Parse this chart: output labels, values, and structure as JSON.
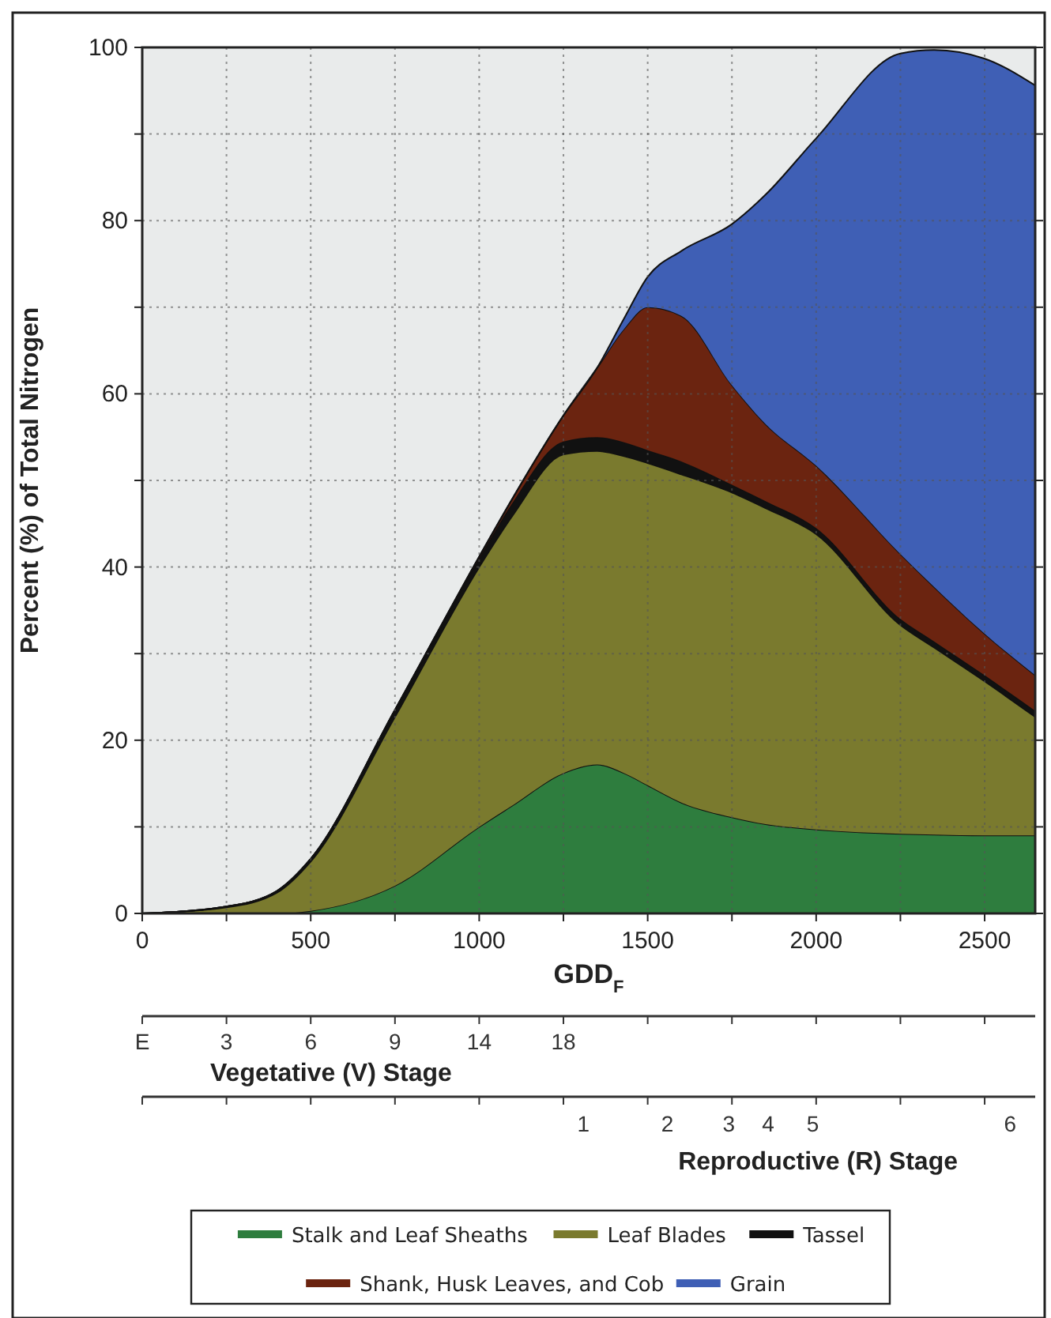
{
  "chart_data": {
    "type": "area",
    "stacked": true,
    "xlabel": "GDD$_{F}$",
    "ylabel": "Percent (%) of Total Nitrogen",
    "x": [
      0,
      250,
      400,
      500,
      750,
      1000,
      1100,
      1250,
      1350,
      1430,
      1500,
      1600,
      1750,
      1850,
      2000,
      2250,
      2350,
      2500,
      2650
    ],
    "series": [
      {
        "name": "Stalk and Leaf Sheaths",
        "color": "#2e7d3e",
        "values": [
          0,
          0,
          0,
          0.3,
          3.2,
          10,
          12.5,
          16.2,
          17.2,
          16.2,
          14.8,
          12.8,
          11.1,
          10.3,
          9.7,
          9.2,
          9.1,
          9.0,
          9.0
        ]
      },
      {
        "name": "Leaf Blades",
        "color": "#7a7a2e",
        "values": [
          0,
          0.7,
          2.4,
          5.7,
          19.5,
          30,
          33.5,
          36.8,
          36.2,
          36.6,
          37.2,
          37.9,
          37.5,
          36.5,
          34.1,
          24.1,
          21.6,
          17.8,
          13.7
        ]
      },
      {
        "name": "Tassel",
        "color": "#111111",
        "values": [
          0,
          0.1,
          0.2,
          0.3,
          0.8,
          1,
          1.5,
          1.5,
          1.6,
          1.6,
          1.5,
          1.5,
          0.9,
          0.8,
          0.7,
          0.7,
          0.7,
          0.7,
          0.7
        ]
      },
      {
        "name": "Shank, Husk Leaves, and Cob",
        "color": "#6b2410",
        "values": [
          0,
          0,
          0,
          0,
          0,
          0.2,
          0.5,
          3,
          8,
          13.1,
          16.5,
          16.8,
          11.5,
          8.9,
          7.2,
          7.5,
          6.3,
          4.8,
          4.1
        ]
      },
      {
        "name": "Grain",
        "color": "#3f5fb5",
        "values": [
          0,
          0,
          0,
          0,
          0,
          0,
          0,
          0,
          0,
          1.2,
          3.5,
          7.5,
          18.6,
          26.5,
          37.8,
          57.8,
          62,
          66.4,
          68.1
        ]
      }
    ],
    "xlim": [
      0,
      2650
    ],
    "xticks": [
      0,
      {
        "value": 250,
        "label": null
      },
      500,
      {
        "value": 750,
        "label": null
      },
      1000,
      {
        "value": 1250,
        "label": null
      },
      1500,
      {
        "value": 1750,
        "label": null
      },
      2000,
      {
        "value": 2250,
        "label": null
      },
      2500
    ],
    "ylim": [
      0,
      100
    ],
    "yticks": [
      0,
      {
        "value": 10,
        "label": null
      },
      20,
      {
        "value": 30,
        "label": null
      },
      40,
      {
        "value": 50,
        "label": null
      },
      60,
      {
        "value": 70,
        "label": null
      },
      80,
      {
        "value": 90,
        "label": null
      },
      100
    ],
    "annotations": [
      {
        "text": "E",
        "x": 0
      },
      {
        "text": "3",
        "x": 250
      },
      {
        "text": "6",
        "x": 500
      },
      {
        "text": "9",
        "x": 750
      },
      {
        "text": "14",
        "x": 1000
      },
      {
        "text": "18",
        "x": 1250
      },
      "Vegetative (V) Stage",
      "1",
      "2",
      "3",
      "4",
      "5",
      "6",
      "Reproductive (R) Stage"
    ],
    "grid": true,
    "legend": "bottom"
  }
}
